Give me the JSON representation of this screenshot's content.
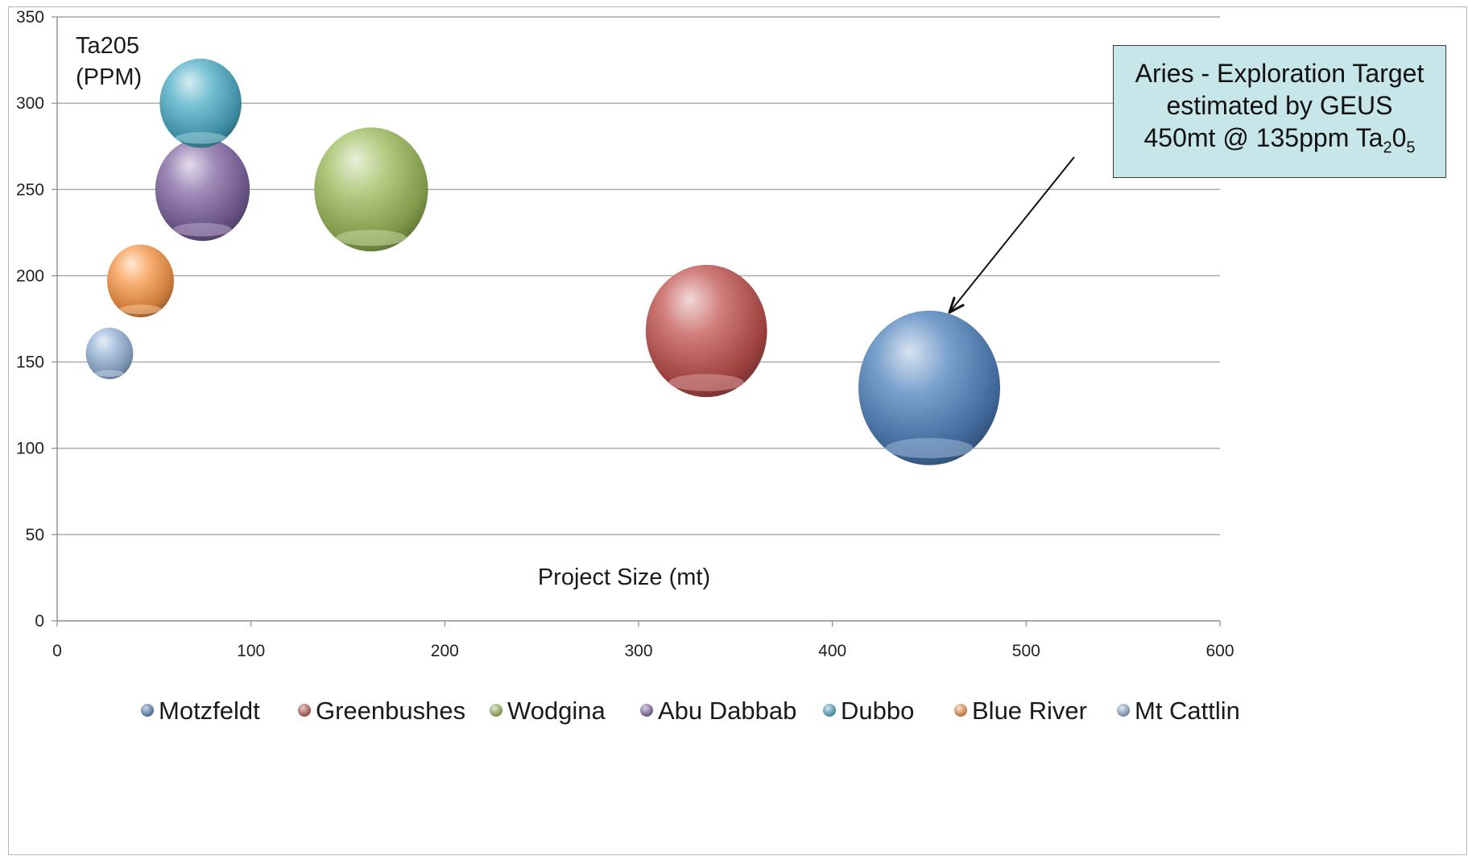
{
  "chart_data": {
    "type": "bubble",
    "xlabel": "Project Size (mt)",
    "ylabel_line1": "Ta205",
    "ylabel_line2": "(PPM)",
    "xlim": [
      0,
      600
    ],
    "ylim": [
      0,
      350
    ],
    "x_ticks": [
      "0",
      "100",
      "200",
      "300",
      "400",
      "500",
      "600"
    ],
    "y_ticks": [
      "0",
      "50",
      "100",
      "150",
      "200",
      "250",
      "300",
      "350"
    ],
    "grid": true,
    "legend_position": "bottom",
    "series": [
      {
        "name": "Motzfeldt",
        "x": 450,
        "y": 135,
        "size": 450,
        "color": "#4f81bd"
      },
      {
        "name": "Greenbushes",
        "x": 335,
        "y": 168,
        "size": 330,
        "color": "#c0504d"
      },
      {
        "name": "Wodgina",
        "x": 162,
        "y": 250,
        "size": 290,
        "color": "#9bbb59"
      },
      {
        "name": "Abu Dabbab",
        "x": 75,
        "y": 250,
        "size": 200,
        "color": "#8064a2"
      },
      {
        "name": "Dubbo",
        "x": 74,
        "y": 300,
        "size": 150,
        "color": "#4bacc6"
      },
      {
        "name": "Blue River",
        "x": 43,
        "y": 197,
        "size": 100,
        "color": "#f79646"
      },
      {
        "name": "Mt Cattlin",
        "x": 27,
        "y": 155,
        "size": 50,
        "color": "#95b3d7"
      }
    ],
    "annotation": {
      "line1": "Aries - Exploration Target",
      "line2": "estimated by GEUS",
      "line3_pre": "450mt @ 135ppm Ta",
      "sub1": "2",
      "mid": "0",
      "sub2": "5",
      "points_to": "Motzfeldt"
    }
  }
}
